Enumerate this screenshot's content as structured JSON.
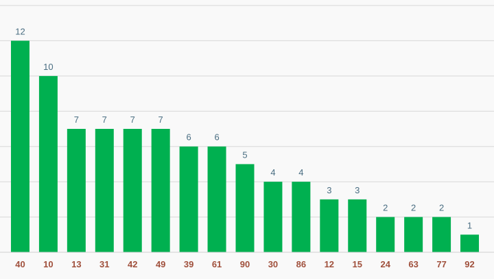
{
  "chart_data": {
    "type": "bar",
    "title": "",
    "xlabel": "",
    "ylabel": "",
    "categories": [
      "40",
      "10",
      "13",
      "31",
      "42",
      "49",
      "39",
      "61",
      "90",
      "30",
      "86",
      "12",
      "15",
      "24",
      "63",
      "77",
      "92"
    ],
    "values": [
      12,
      10,
      7,
      7,
      7,
      7,
      6,
      6,
      5,
      4,
      4,
      3,
      3,
      2,
      2,
      2,
      1
    ],
    "ylim": [
      0,
      14
    ],
    "grid": true,
    "data_labels": true,
    "colors": {
      "bar": "#00b050",
      "value_label": "#4a6e82",
      "category_label": "#a0503c",
      "grid": "#d7d7d7",
      "background": "#f9f9f9"
    }
  }
}
